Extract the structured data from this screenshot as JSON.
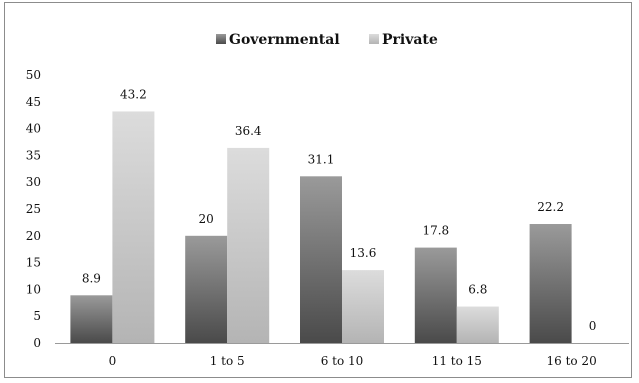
{
  "chart_data": {
    "type": "bar",
    "categories": [
      "0",
      "1 to 5",
      "6 to 10",
      "11 to 15",
      "16 to 20"
    ],
    "series": [
      {
        "name": "Governmental",
        "values": [
          8.9,
          20,
          31.1,
          17.8,
          22.2
        ],
        "color_top": "#9a9a9a",
        "color_bottom": "#4a4a4a"
      },
      {
        "name": "Private",
        "values": [
          43.2,
          36.4,
          13.6,
          6.8,
          0
        ],
        "color_top": "#dcdcdc",
        "color_bottom": "#b4b4b4"
      }
    ],
    "data_labels": [
      [
        "8.9",
        "20",
        "31.1",
        "17.8",
        "22.2"
      ],
      [
        "43.2",
        "36.4",
        "13.6",
        "6.8",
        "0"
      ]
    ],
    "y_ticks": [
      "0",
      "5",
      "10",
      "15",
      "20",
      "25",
      "30",
      "35",
      "40",
      "45",
      "50"
    ],
    "ylim": [
      0,
      50
    ],
    "grid": false,
    "legend_position": "top-center",
    "title": "",
    "xlabel": "",
    "ylabel": ""
  }
}
